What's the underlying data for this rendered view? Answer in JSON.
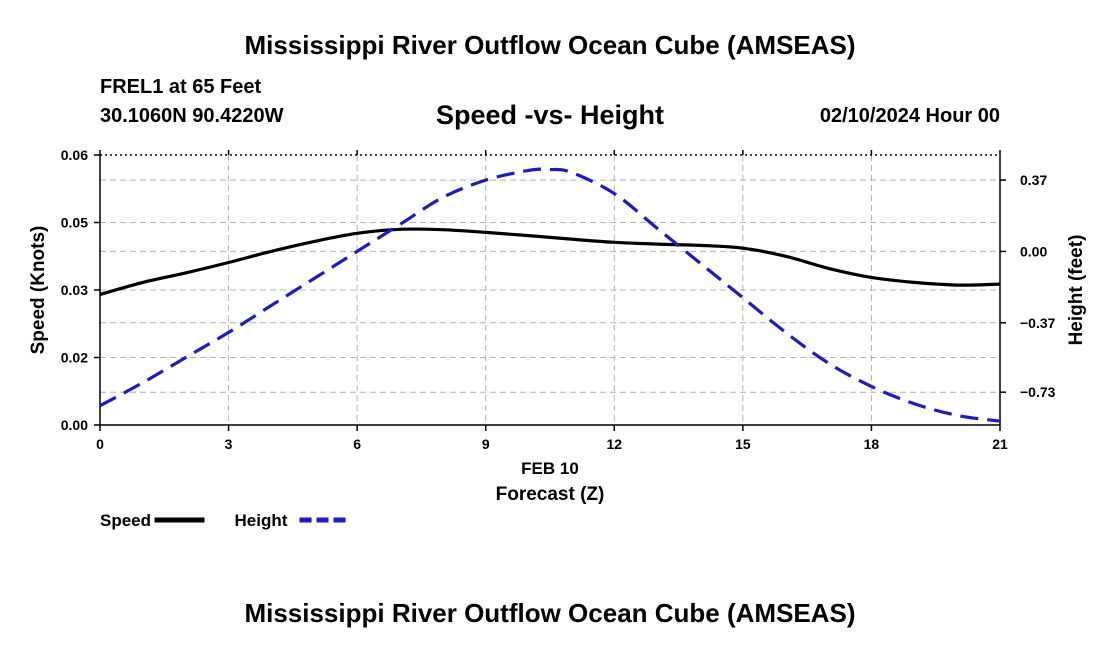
{
  "header": {
    "title": "Mississippi River Outflow Ocean Cube (AMSEAS)",
    "station": "FREL1 at 65 Feet",
    "coordinates": "30.1060N  90.4220W",
    "subtitle": "Speed -vs- Height",
    "datetime": "02/10/2024 Hour 00"
  },
  "footer": {
    "title": "Mississippi River Outflow Ocean Cube (AMSEAS)"
  },
  "chart_data": {
    "type": "line",
    "title": "Speed -vs- Height",
    "xlabel": "Forecast (Z)",
    "xlabel_date": "FEB 10",
    "ylabel_left": "Speed (Knots)",
    "ylabel_right": "Height (feet)",
    "xlim": [
      0,
      21
    ],
    "ylim_left": [
      0,
      0.06
    ],
    "ylim_right": [
      -0.9,
      0.5
    ],
    "x_ticks": [
      0,
      3,
      6,
      9,
      12,
      15,
      18,
      21
    ],
    "x_tick_labels": [
      "0",
      "3",
      "6",
      "9",
      "12",
      "15",
      "18",
      "21"
    ],
    "y_left_ticks": [
      0,
      0.015,
      0.03,
      0.045,
      0.06
    ],
    "y_left_tick_labels": [
      "0.00",
      "0.02",
      "0.03",
      "0.05",
      "0.06"
    ],
    "y_right_ticks": [
      0.37,
      0.0,
      -0.37,
      -0.73
    ],
    "y_right_tick_labels": [
      "0.37",
      "0.00",
      "−0.37",
      "−0.73"
    ],
    "grid": true,
    "series": [
      {
        "name": "Speed",
        "axis": "left",
        "color": "#000000",
        "style": "solid",
        "x": [
          0,
          1,
          2,
          3,
          4,
          5,
          6,
          7,
          8,
          9,
          10,
          11,
          12,
          13,
          14,
          15,
          16,
          17,
          18,
          19,
          20,
          21
        ],
        "values": [
          0.029,
          0.0317,
          0.0338,
          0.0361,
          0.0386,
          0.0408,
          0.0426,
          0.0435,
          0.0434,
          0.0428,
          0.0421,
          0.0413,
          0.0406,
          0.0402,
          0.0399,
          0.0393,
          0.0375,
          0.0348,
          0.0328,
          0.0317,
          0.0311,
          0.0313
        ]
      },
      {
        "name": "Height",
        "axis": "right",
        "color": "#1a1acc",
        "style": "dashed",
        "x": [
          0,
          1,
          2,
          3,
          4,
          5,
          6,
          7,
          8,
          9,
          10,
          10.5,
          11,
          12,
          13,
          14,
          15,
          16,
          17,
          18,
          19,
          20,
          21
        ],
        "values": [
          -0.8,
          -0.68,
          -0.55,
          -0.42,
          -0.28,
          -0.14,
          0.0,
          0.14,
          0.28,
          0.37,
          0.42,
          0.425,
          0.41,
          0.3,
          0.12,
          -0.06,
          -0.24,
          -0.42,
          -0.58,
          -0.7,
          -0.79,
          -0.85,
          -0.88
        ]
      }
    ],
    "legend": {
      "placement": "bottom-left",
      "items": [
        {
          "label": "Speed",
          "color": "#000000",
          "style": "solid"
        },
        {
          "label": "Height",
          "color": "#1a1acc",
          "style": "dashed"
        }
      ]
    }
  }
}
